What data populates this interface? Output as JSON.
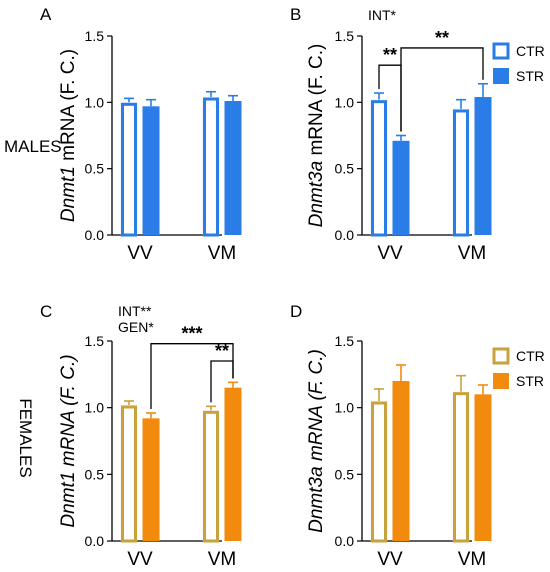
{
  "figure": {
    "row_labels": [
      "MALES",
      "FEMALES"
    ],
    "colors": {
      "male_bar": "#2a7de6",
      "male_fill": "#ffffff",
      "male_shade": "#cfe3fb",
      "female_bar": "#f28a0e",
      "female_edge": "#c9a23c",
      "female_fill": "#ffffff",
      "female_shade": "#f7dff1"
    },
    "legend": {
      "ctr": "CTR",
      "str": "STR"
    }
  },
  "chart_data": [
    {
      "type": "bar",
      "panel": "A",
      "gene": "Dnmt1",
      "ylabel_rest": " mRNA (F. C.)",
      "italic_all": false,
      "categories": [
        "VV",
        "VM"
      ],
      "series": [
        {
          "name": "CTR",
          "values": [
            1.0,
            1.04
          ],
          "err": [
            0.03,
            0.04
          ]
        },
        {
          "name": "STR",
          "values": [
            0.97,
            1.01
          ],
          "err": [
            0.05,
            0.04
          ]
        }
      ],
      "ylim": [
        0,
        1.5
      ],
      "yticks": [
        "0.0",
        "0.5",
        "1.0",
        "1.5"
      ],
      "annotations": [],
      "significance": [],
      "legend": false
    },
    {
      "type": "bar",
      "panel": "B",
      "gene": "Dnmt3a",
      "ylabel_rest": " mRNA (F. C.)",
      "italic_all": false,
      "categories": [
        "VV",
        "VM"
      ],
      "series": [
        {
          "name": "CTR",
          "values": [
            1.02,
            0.95
          ],
          "err": [
            0.05,
            0.07
          ]
        },
        {
          "name": "STR",
          "values": [
            0.71,
            1.04
          ],
          "err": [
            0.04,
            0.1
          ]
        }
      ],
      "ylim": [
        0,
        1.5
      ],
      "yticks": [
        "0.0",
        "0.5",
        "1.0",
        "1.5"
      ],
      "annotations": [
        "INT*"
      ],
      "significance": [
        {
          "label": "**",
          "from": [
            0,
            0
          ],
          "to": [
            0,
            1
          ]
        },
        {
          "label": "**",
          "from": [
            0,
            1
          ],
          "to": [
            1,
            1
          ]
        }
      ],
      "legend": true
    },
    {
      "type": "bar",
      "panel": "C",
      "gene": "Dnmt1",
      "ylabel_rest": " mRNA (F. C.)",
      "italic_all": true,
      "categories": [
        "VV",
        "VM"
      ],
      "series": [
        {
          "name": "CTR",
          "values": [
            1.02,
            0.98
          ],
          "err": [
            0.03,
            0.03
          ]
        },
        {
          "name": "STR",
          "values": [
            0.92,
            1.15
          ],
          "err": [
            0.04,
            0.04
          ]
        }
      ],
      "ylim": [
        0,
        1.5
      ],
      "yticks": [
        "0.0",
        "0.5",
        "1.0",
        "1.5"
      ],
      "annotations": [
        "INT**",
        "GEN*"
      ],
      "significance": [
        {
          "label": "***",
          "from": [
            0,
            1
          ],
          "to": [
            1,
            1
          ]
        },
        {
          "label": "**",
          "from": [
            1,
            0
          ],
          "to": [
            1,
            1
          ]
        }
      ],
      "legend": false
    },
    {
      "type": "bar",
      "panel": "D",
      "gene": "Dnmt3a",
      "ylabel_rest": " mRNA (F. C.)",
      "italic_all": true,
      "categories": [
        "VV",
        "VM"
      ],
      "series": [
        {
          "name": "CTR",
          "values": [
            1.05,
            1.12
          ],
          "err": [
            0.09,
            0.12
          ]
        },
        {
          "name": "STR",
          "values": [
            1.2,
            1.1
          ],
          "err": [
            0.12,
            0.07
          ]
        }
      ],
      "ylim": [
        0,
        1.5
      ],
      "yticks": [
        "0.0",
        "0.5",
        "1.0",
        "1.5"
      ],
      "annotations": [],
      "significance": [],
      "legend": true
    }
  ]
}
